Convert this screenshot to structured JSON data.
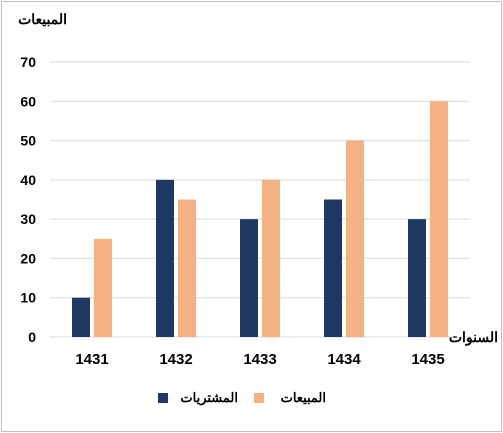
{
  "chart_data": {
    "type": "bar",
    "ylabel": "المبيعات",
    "xlabel": "السنوات",
    "categories": [
      "1431",
      "1432",
      "1433",
      "1434",
      "1435"
    ],
    "ylim": [
      0,
      70
    ],
    "yticks": [
      0,
      10,
      20,
      30,
      40,
      50,
      60,
      70
    ],
    "grid": true,
    "legend_position": "bottom",
    "series": [
      {
        "name": "المشتريات",
        "values": [
          10,
          40,
          30,
          35,
          30
        ],
        "color": "#203864"
      },
      {
        "name": "المبيعات",
        "values": [
          25,
          35,
          40,
          50,
          60
        ],
        "color": "#f4b183"
      }
    ],
    "gridline_color": "#d9d9d9",
    "text_color": "#000000"
  }
}
